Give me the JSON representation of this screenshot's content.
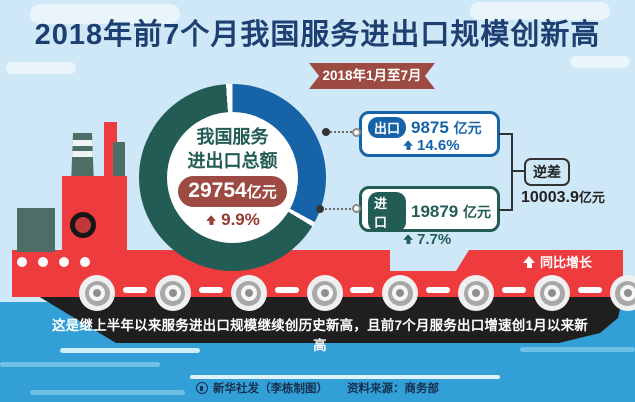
{
  "title": "2018年前7个月我国服务进出口规模创新高",
  "period_badge": "2018年1月至7月",
  "donut_center": {
    "line1": "我国服务",
    "line2": "进出口总额",
    "value": "29754",
    "unit": "亿元",
    "growth": "9.9%"
  },
  "export_card": {
    "tag": "出口",
    "value": "9875",
    "unit": "亿元",
    "growth": "14.6%"
  },
  "import_card": {
    "tag": "进口",
    "value": "19879",
    "unit": "亿元",
    "growth": "7.7%"
  },
  "deficit": {
    "label": "逆差",
    "value": "10003.9",
    "unit": "亿元"
  },
  "legend_label": "同比增长",
  "banner_text": "这是继上半年以来服务进出口规模继续创历史新高，且前7个月服务出口增速创1月以来新高",
  "footer": {
    "credit": "新华社发（李栋制图）",
    "source": "资料来源：商务部"
  },
  "colors": {
    "export_blue": "#1663a8",
    "import_teal": "#235c55",
    "accent_red": "#9c4a42",
    "growth_red": "#943b33",
    "ship_red": "#ed3b3e",
    "hull_black": "#1f1f1f",
    "water_blue": "#32a0d7",
    "sky_blue": "#cfe8f7",
    "title_navy": "#1d3f71"
  },
  "chart_data": {
    "type": "pie",
    "title": "2018年前7个月我国服务进出口规模创新高",
    "period": "2018年1月至7月",
    "total_label": "我国服务进出口总额",
    "total_value": 29754,
    "unit": "亿元",
    "total_yoy_growth_pct": 9.9,
    "slices": [
      {
        "name": "出口",
        "value": 9875,
        "yoy_growth_pct": 14.6,
        "color": "#1663a8"
      },
      {
        "name": "进口",
        "value": 19879,
        "yoy_growth_pct": 7.7,
        "color": "#235c55"
      }
    ],
    "deficit": {
      "label": "逆差",
      "value": 10003.9,
      "unit": "亿元"
    },
    "legend": "同比增长",
    "note": "这是继上半年以来服务进出口规模继续创历史新高，且前7个月服务出口增速创1月以来新高",
    "credit": "新华社发（李栋制图）",
    "source": "资料来源：商务部"
  }
}
